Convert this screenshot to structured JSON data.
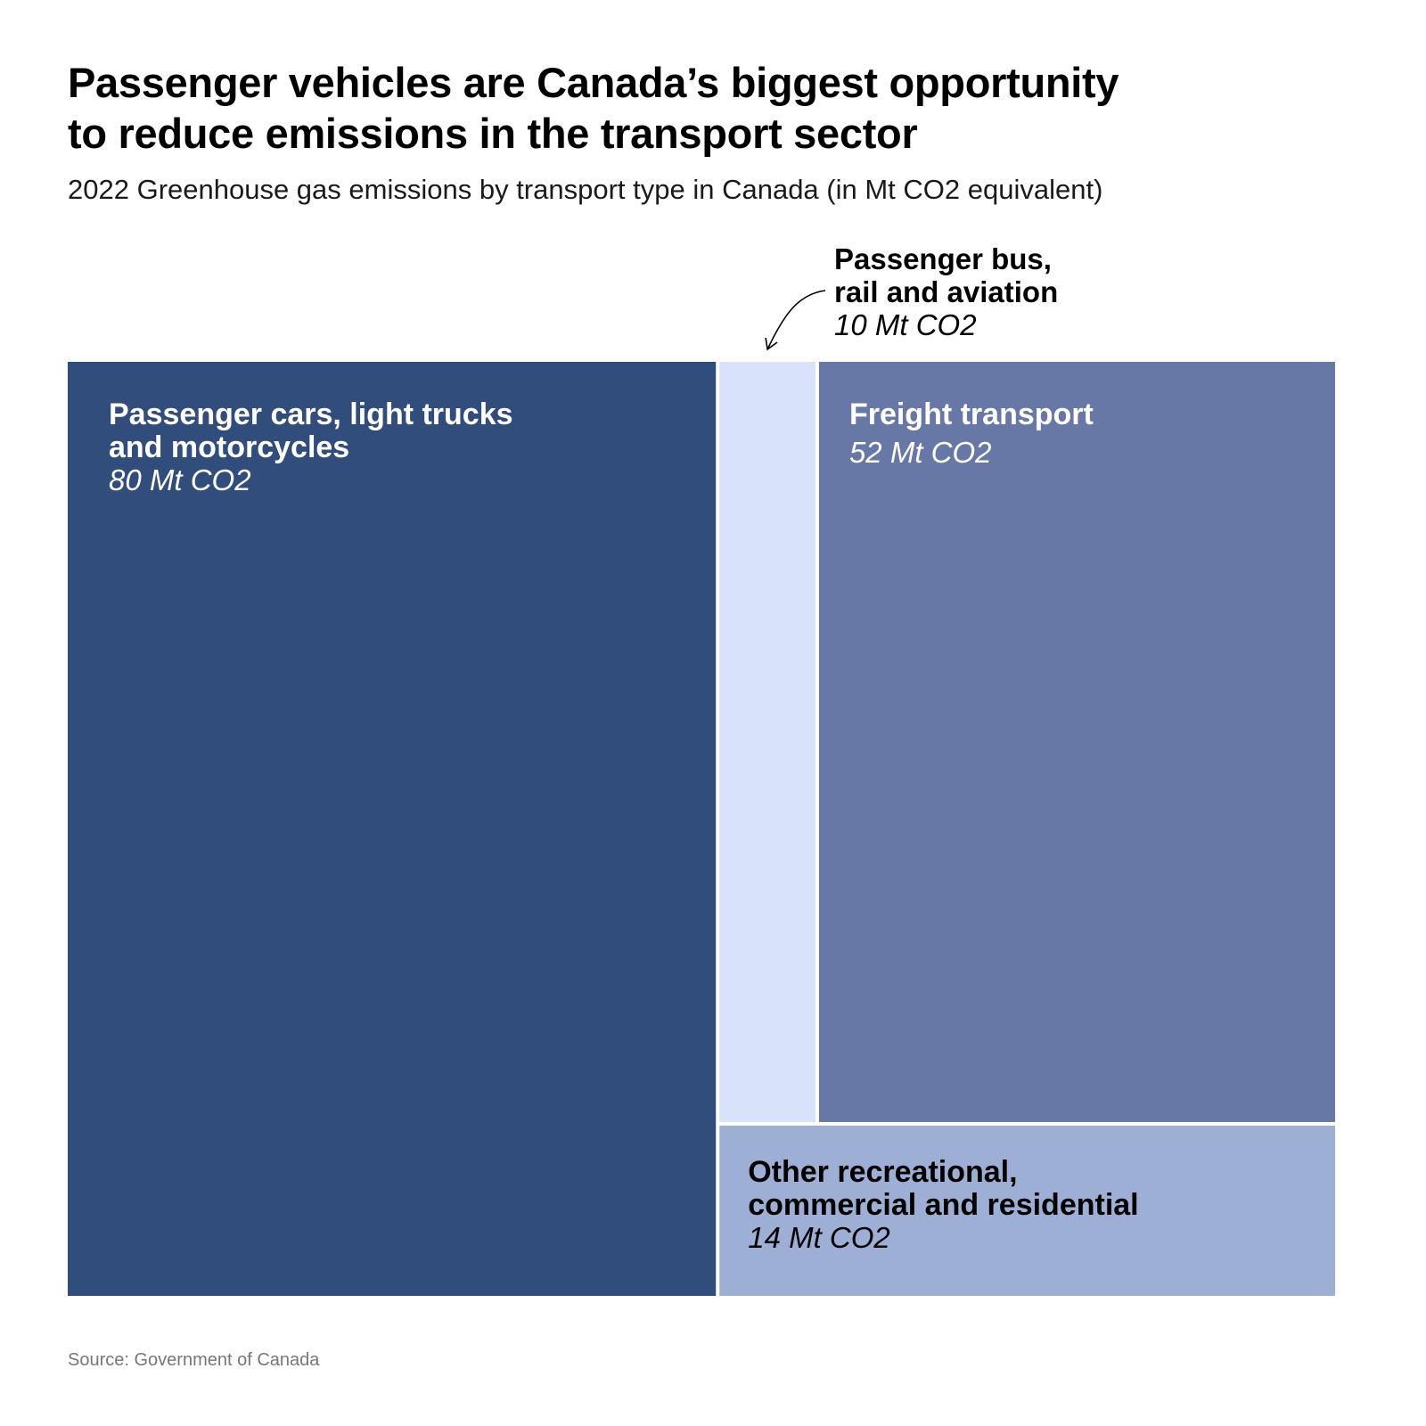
{
  "title": {
    "line1": "Passenger vehicles are Canada’s biggest opportunity",
    "line2": "to reduce emissions in the transport sector"
  },
  "subtitle": "2022 Greenhouse gas emissions by transport type in Canada (in Mt CO2 equivalent)",
  "source": "Source: Government of Canada",
  "chart_data": {
    "type": "treemap",
    "unit": "Mt CO2",
    "items": [
      {
        "label_lines": [
          "Passenger cars, light trucks",
          "and motorcycles"
        ],
        "value": 80,
        "value_label": "80 Mt CO2",
        "color": "#314d7b",
        "text_color": "#ffffff"
      },
      {
        "label_lines": [
          "Passenger bus,",
          "rail and aviation"
        ],
        "value": 10,
        "value_label": "10 Mt CO2",
        "color": "#d8e2fb",
        "text_color": "#000000",
        "label_outside": true
      },
      {
        "label_lines": [
          "Freight transport"
        ],
        "value": 52,
        "value_label": "52 Mt CO2",
        "color": "#6878a6",
        "text_color": "#ffffff"
      },
      {
        "label_lines": [
          "Other recreational,",
          "commercial and residential"
        ],
        "value": 14,
        "value_label": "14 Mt CO2",
        "color": "#9dafd4",
        "text_color": "#000000"
      }
    ]
  }
}
